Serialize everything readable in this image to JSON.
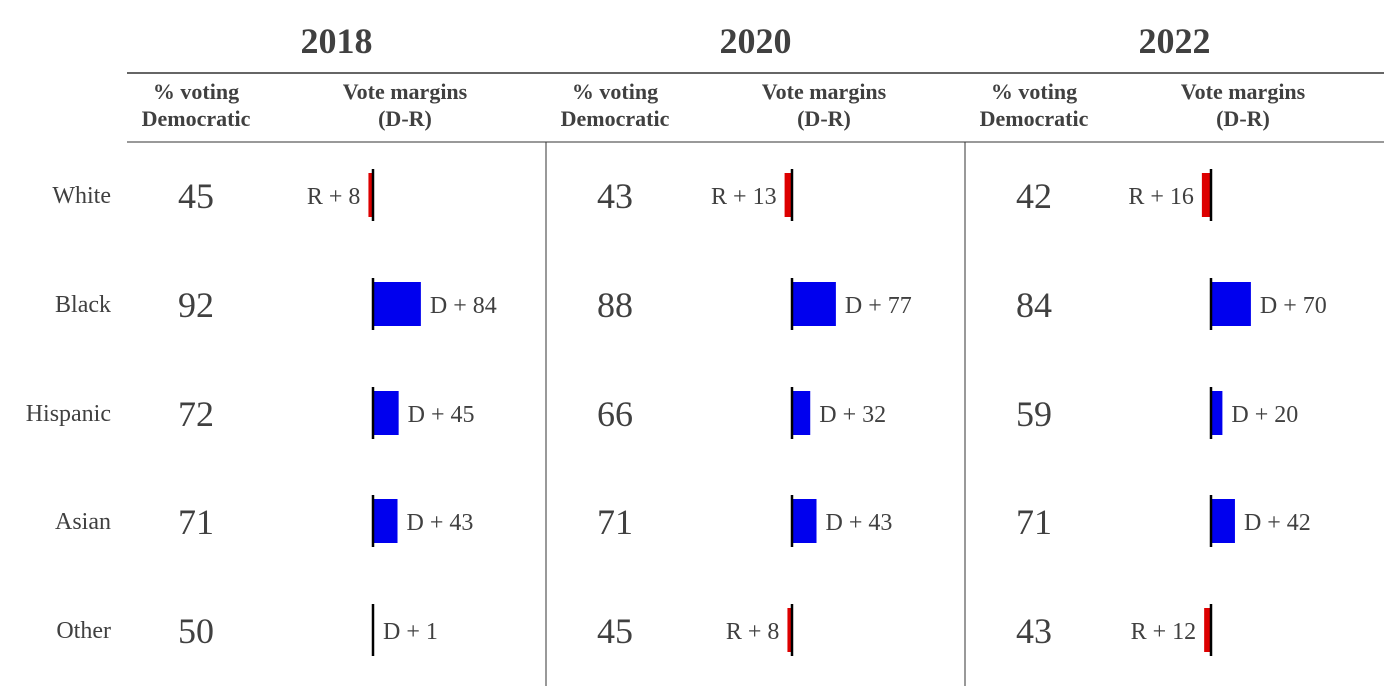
{
  "chart_data": {
    "type": "table",
    "col_headers": {
      "pct": [
        "% voting",
        "Democratic"
      ],
      "margin": [
        "Vote margins",
        "(D-R)"
      ]
    },
    "groups": [
      "White",
      "Black",
      "Hispanic",
      "Asian",
      "Other"
    ],
    "colors": {
      "D": "#0000ee",
      "R": "#dd0000",
      "axis": "#000000",
      "text": "#404040",
      "rule": "#333333"
    },
    "years": [
      {
        "year": "2018",
        "rows": [
          {
            "group": "White",
            "pct": 45,
            "party": "R",
            "margin": 8,
            "label": "R + 8"
          },
          {
            "group": "Black",
            "pct": 92,
            "party": "D",
            "margin": 84,
            "label": "D + 84"
          },
          {
            "group": "Hispanic",
            "pct": 72,
            "party": "D",
            "margin": 45,
            "label": "D + 45"
          },
          {
            "group": "Asian",
            "pct": 71,
            "party": "D",
            "margin": 43,
            "label": "D + 43"
          },
          {
            "group": "Other",
            "pct": 50,
            "party": "D",
            "margin": 1,
            "label": "D + 1"
          }
        ]
      },
      {
        "year": "2020",
        "rows": [
          {
            "group": "White",
            "pct": 43,
            "party": "R",
            "margin": 13,
            "label": "R + 13"
          },
          {
            "group": "Black",
            "pct": 88,
            "party": "D",
            "margin": 77,
            "label": "D + 77"
          },
          {
            "group": "Hispanic",
            "pct": 66,
            "party": "D",
            "margin": 32,
            "label": "D + 32"
          },
          {
            "group": "Asian",
            "pct": 71,
            "party": "D",
            "margin": 43,
            "label": "D + 43"
          },
          {
            "group": "Other",
            "pct": 45,
            "party": "R",
            "margin": 8,
            "label": "R + 8"
          }
        ]
      },
      {
        "year": "2022",
        "rows": [
          {
            "group": "White",
            "pct": 42,
            "party": "R",
            "margin": 16,
            "label": "R + 16"
          },
          {
            "group": "Black",
            "pct": 84,
            "party": "D",
            "margin": 70,
            "label": "D + 70"
          },
          {
            "group": "Hispanic",
            "pct": 59,
            "party": "D",
            "margin": 20,
            "label": "D + 20"
          },
          {
            "group": "Asian",
            "pct": 71,
            "party": "D",
            "margin": 42,
            "label": "D + 42"
          },
          {
            "group": "Other",
            "pct": 43,
            "party": "R",
            "margin": 12,
            "label": "R + 12"
          }
        ]
      }
    ]
  }
}
